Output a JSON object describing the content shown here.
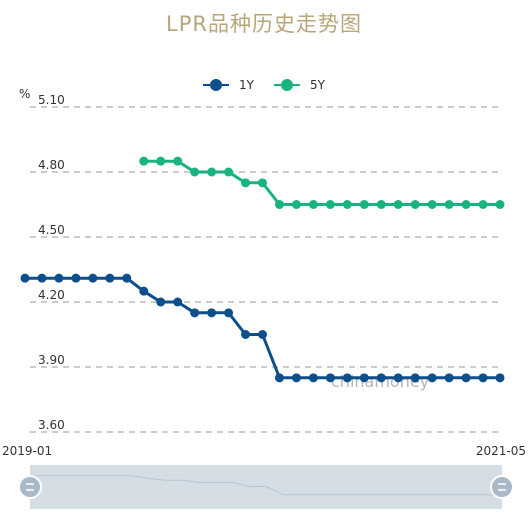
{
  "title": "LPR品种历史走势图",
  "watermark": "chinamoney",
  "colors": {
    "title": "#b8a57a",
    "series_1y": "#0d4f8b",
    "series_5y": "#19b37d",
    "grid": "#9a9a9a",
    "slider_bg": "#d5dee5"
  },
  "slider": {
    "left_handle_icon": "drag-handle-icon",
    "right_handle_icon": "drag-handle-icon"
  },
  "chart_data": {
    "type": "line",
    "title": "LPR品种历史走势图",
    "ylabel": "%",
    "ylim": [
      3.6,
      5.1
    ],
    "yticks": [
      "5.10",
      "4.80",
      "4.50",
      "4.20",
      "3.90",
      "3.60"
    ],
    "x_labels": [
      "2019-01",
      "2021-05"
    ],
    "legend_position": "top-center",
    "grid": true,
    "series": [
      {
        "name": "1Y",
        "values": [
          4.31,
          4.31,
          4.31,
          4.31,
          4.31,
          4.31,
          4.31,
          4.25,
          4.2,
          4.2,
          4.15,
          4.15,
          4.15,
          4.05,
          4.05,
          3.85,
          3.85,
          3.85,
          3.85,
          3.85,
          3.85,
          3.85,
          3.85,
          3.85,
          3.85,
          3.85,
          3.85,
          3.85,
          3.85
        ]
      },
      {
        "name": "5Y",
        "values": [
          null,
          null,
          null,
          null,
          null,
          null,
          null,
          4.85,
          4.85,
          4.85,
          4.8,
          4.8,
          4.8,
          4.75,
          4.75,
          4.65,
          4.65,
          4.65,
          4.65,
          4.65,
          4.65,
          4.65,
          4.65,
          4.65,
          4.65,
          4.65,
          4.65,
          4.65,
          4.65
        ]
      }
    ]
  }
}
